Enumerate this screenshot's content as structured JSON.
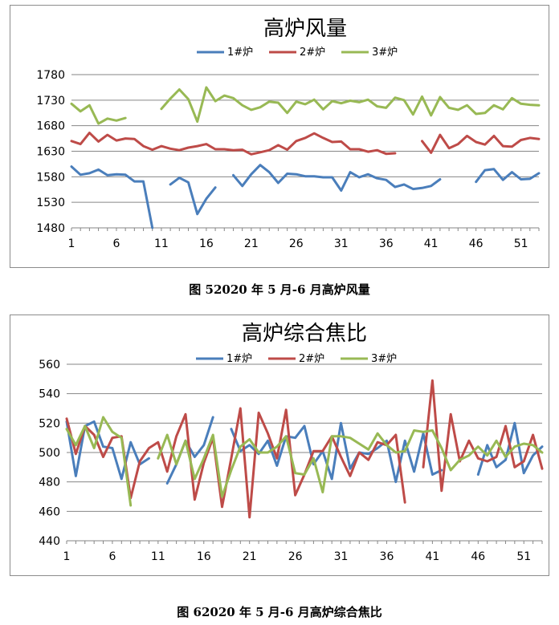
{
  "chart_data": [
    {
      "type": "line",
      "title": "高炉风量",
      "caption": "图 52020 年 5 月-6 月高炉风量",
      "ylim": [
        1480,
        1780
      ],
      "yticks": [
        1480,
        1530,
        1580,
        1630,
        1680,
        1730,
        1780
      ],
      "xlim": [
        1,
        53
      ],
      "xticks": [
        1,
        6,
        11,
        16,
        21,
        26,
        31,
        36,
        41,
        46,
        51
      ],
      "legend_position": "top-center",
      "series": [
        {
          "name": "1#炉",
          "color": "#4a7ebb",
          "values": [
            1600,
            1584,
            1587,
            1594,
            1583,
            1585,
            1584,
            1571,
            1571,
            1478,
            null,
            1565,
            1578,
            1569,
            1507,
            1537,
            1559,
            null,
            1583,
            1562,
            1585,
            1603,
            1589,
            1568,
            1586,
            1585,
            1581,
            1581,
            1579,
            1579,
            1553,
            1589,
            1579,
            1585,
            1577,
            1574,
            1560,
            1565,
            1556,
            1558,
            1562,
            1575,
            null,
            null,
            null,
            1570,
            1593,
            1595,
            1574,
            1589,
            1575,
            1576,
            1587
          ]
        },
        {
          "name": "2#炉",
          "color": "#be4b48",
          "values": [
            1650,
            1644,
            1666,
            1649,
            1662,
            1651,
            1655,
            1654,
            1640,
            1633,
            1640,
            1635,
            1632,
            1637,
            1640,
            1644,
            1634,
            1634,
            1632,
            1633,
            1624,
            1628,
            1632,
            1642,
            1633,
            1650,
            1656,
            1665,
            1656,
            1648,
            1649,
            1634,
            1634,
            1629,
            1632,
            1625,
            1626,
            null,
            null,
            1650,
            1627,
            1662,
            1636,
            1644,
            1660,
            1648,
            1643,
            1660,
            1640,
            1639,
            1652,
            1656,
            1654
          ]
        },
        {
          "name": "3#炉",
          "color": "#98b954",
          "values": [
            1723,
            1708,
            1720,
            1684,
            1694,
            1690,
            1695,
            null,
            null,
            null,
            1713,
            1733,
            1751,
            1732,
            1688,
            1755,
            1728,
            1739,
            1734,
            1720,
            1711,
            1716,
            1727,
            1725,
            1705,
            1727,
            1722,
            1731,
            1712,
            1728,
            1724,
            1729,
            1726,
            1731,
            1718,
            1715,
            1735,
            1730,
            1702,
            1737,
            1700,
            1736,
            1715,
            1711,
            1720,
            1703,
            1705,
            1720,
            1712,
            1734,
            1723,
            1721,
            1720
          ]
        }
      ]
    },
    {
      "type": "line",
      "title": "高炉综合焦比",
      "caption": "图 62020 年 5 月-6 月高炉综合焦比",
      "ylim": [
        440,
        560
      ],
      "yticks": [
        440,
        460,
        480,
        500,
        520,
        540,
        560
      ],
      "xlim": [
        1,
        53
      ],
      "xticks": [
        1,
        6,
        11,
        16,
        21,
        26,
        31,
        36,
        41,
        46,
        51
      ],
      "legend_position": "top-center",
      "series": [
        {
          "name": "1#炉",
          "color": "#4a7ebb",
          "values": [
            521,
            484,
            518,
            521,
            504,
            503,
            482,
            507,
            492,
            496,
            null,
            479,
            492,
            508,
            497,
            505,
            524,
            null,
            516,
            501,
            505,
            499,
            508,
            491,
            511,
            510,
            518,
            492,
            501,
            482,
            520,
            489,
            500,
            499,
            503,
            508,
            480,
            508,
            487,
            513,
            485,
            488,
            null,
            null,
            null,
            485,
            505,
            490,
            495,
            520,
            486,
            498,
            504
          ]
        },
        {
          "name": "2#炉",
          "color": "#be4b48",
          "values": [
            523,
            499,
            518,
            512,
            497,
            510,
            511,
            469,
            494,
            503,
            507,
            487,
            511,
            526,
            468,
            493,
            510,
            463,
            496,
            530,
            456,
            527,
            513,
            496,
            529,
            471,
            485,
            501,
            501,
            511,
            497,
            484,
            500,
            495,
            507,
            505,
            512,
            466,
            null,
            490,
            549,
            474,
            526,
            494,
            508,
            496,
            494,
            497,
            518,
            490,
            494,
            512,
            489
          ]
        },
        {
          "name": "3#炉",
          "color": "#98b954",
          "values": [
            516,
            505,
            518,
            503,
            524,
            514,
            510,
            464,
            null,
            null,
            496,
            512,
            492,
            508,
            482,
            496,
            512,
            470,
            488,
            504,
            509,
            500,
            500,
            504,
            511,
            486,
            485,
            496,
            473,
            511,
            511,
            510,
            506,
            502,
            513,
            505,
            500,
            501,
            515,
            514,
            515,
            503,
            488,
            495,
            498,
            504,
            498,
            508,
            497,
            504,
            506,
            505,
            500
          ]
        }
      ]
    }
  ]
}
